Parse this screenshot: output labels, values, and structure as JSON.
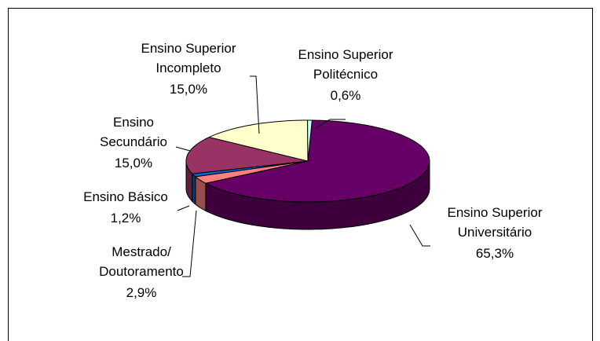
{
  "chart_data": {
    "type": "pie3d",
    "categories": [
      "Ensino Superior\nUniversitário",
      "Mestrado/\nDoutoramento",
      "Ensino Básico",
      "Ensino\nSecundário",
      "Ensino Superior\nIncompleto",
      "Ensino Superior\nPolitécnico"
    ],
    "values": [
      65.3,
      2.9,
      1.2,
      15.0,
      15.0,
      0.6
    ],
    "value_labels": [
      "65,3%",
      "2,9%",
      "1,2%",
      "15,0%",
      "15,0%",
      "0,6%"
    ],
    "colors": [
      "#660066",
      "#ff8080",
      "#0066cc",
      "#993366",
      "#ffffcc",
      "#ccffff"
    ]
  }
}
